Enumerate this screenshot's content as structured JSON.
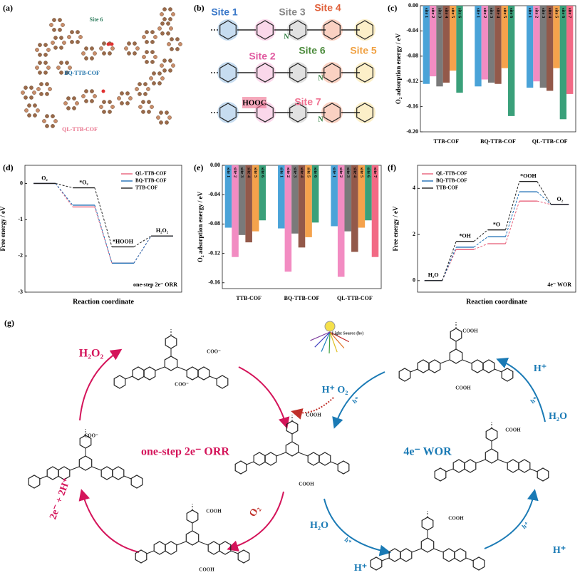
{
  "figure": {
    "panel_labels": [
      "(a)",
      "(b)",
      "(c)",
      "(d)",
      "(e)",
      "(f)",
      "(g)"
    ],
    "a": {
      "site": "Site 6",
      "bq": "BQ-TTB-COF",
      "ql": "QL-TTB-COF"
    },
    "b": {
      "sites": [
        "Site 1",
        "Site 2",
        "Site 3",
        "Site 4",
        "Site 5",
        "Site 6",
        "Site 7"
      ],
      "n": "N",
      "hooc": "HOOC"
    },
    "g": {
      "labels": [
        "H₂O₂",
        "one-step 2e⁻ ORR",
        "2e⁻ + 2H⁺",
        "O₂",
        "H⁺ O₂",
        "h⁺",
        "4e⁻ WOR",
        "H⁺",
        "h⁺",
        "H₂O",
        "H⁺",
        "h⁺",
        "H₂O",
        "h⁺",
        "H⁺",
        "Light Source (hν)",
        "COO⁻",
        "COO⁻",
        "COO⁻",
        "COOH",
        "COOH",
        "COOH",
        "COOH",
        "COOH",
        "COOH",
        "COOH",
        "COOH"
      ]
    }
  },
  "chart_data": [
    {
      "type": "bar",
      "ylabel": "O₂ adsorption energy / eV",
      "categories": [
        "TTB-COF",
        "BQ-TTB-COF",
        "QL-TTB-COF"
      ],
      "series": [
        {
          "name": "site 1",
          "color": "#4aa3d8",
          "values": [
            -0.124,
            -0.128,
            -0.13
          ]
        },
        {
          "name": "site 2",
          "color": "#f28cc2",
          "values": [
            -0.112,
            -0.117,
            -0.12
          ]
        },
        {
          "name": "site 3",
          "color": "#7a7a7a",
          "values": [
            -0.128,
            -0.122,
            -0.13
          ]
        },
        {
          "name": "site 4",
          "color": "#93594a",
          "values": [
            -0.122,
            -0.124,
            -0.135
          ]
        },
        {
          "name": "site 5",
          "color": "#f5a24c",
          "values": [
            -0.103,
            -0.099,
            -0.099
          ]
        },
        {
          "name": "site 6",
          "color": "#3aa07a",
          "values": [
            -0.138,
            -0.175,
            -0.18
          ]
        },
        {
          "name": "site 7",
          "color": "#f26a85",
          "values": [
            null,
            null,
            -0.14
          ]
        }
      ],
      "ylim": [
        -0.2,
        0
      ],
      "yticks": [
        {
          "value": 0,
          "label": "0.00"
        },
        -0.04,
        -0.08,
        -0.12,
        -0.16,
        {
          "value": -0.2,
          "label": "-0.20"
        }
      ]
    },
    {
      "type": "step",
      "ylabel": "Free energy / eV",
      "xlabel": "Reaction coordinate",
      "annotation": "one-step 2e⁻ ORR",
      "categories": [
        "O₂",
        "*O₂",
        "*HOOH",
        "H₂O₂"
      ],
      "series": [
        {
          "name": "QL-TTB-COF",
          "color": "#e8607a",
          "values": [
            0,
            -0.65,
            -2.2,
            -1.45
          ]
        },
        {
          "name": "BQ-TTB-COF",
          "color": "#1f6fb5",
          "values": [
            0,
            -0.6,
            -2.2,
            -1.45
          ]
        },
        {
          "name": "TTB-COF",
          "color": "#222222",
          "values": [
            0,
            -0.12,
            -1.75,
            -1.45
          ]
        }
      ],
      "ylim": [
        -3,
        0.5
      ],
      "yticks": [
        0,
        -1,
        -2,
        -3
      ],
      "legend": "upper right"
    },
    {
      "type": "bar",
      "ylabel": "O₂ adsorption energy / eV",
      "categories": [
        "TTB-COF",
        "BQ-TTB-COF",
        "QL-TTB-COF"
      ],
      "series": [
        {
          "name": "site 1",
          "color": "#4aa3d8",
          "values": [
            -0.085,
            -0.086,
            -0.083
          ]
        },
        {
          "name": "site 2",
          "color": "#f28cc2",
          "values": [
            -0.125,
            -0.145,
            -0.152
          ]
        },
        {
          "name": "site 3",
          "color": "#7a7a7a",
          "values": [
            -0.095,
            -0.093,
            -0.09
          ]
        },
        {
          "name": "site 4",
          "color": "#93594a",
          "values": [
            -0.105,
            -0.112,
            -0.118
          ]
        },
        {
          "name": "site 5",
          "color": "#f5a24c",
          "values": [
            -0.09,
            -0.098,
            -0.085
          ]
        },
        {
          "name": "site 6",
          "color": "#3aa07a",
          "values": [
            -0.075,
            -0.078,
            -0.075
          ]
        },
        {
          "name": "site 7",
          "color": "#f26a85",
          "values": [
            null,
            null,
            -0.125
          ]
        }
      ],
      "ylim": [
        -0.168,
        0
      ],
      "yticks": [
        {
          "value": 0,
          "label": "0.00"
        },
        -0.04,
        -0.08,
        -0.12,
        -0.16
      ]
    },
    {
      "type": "step",
      "ylabel": "Free energy / eV",
      "xlabel": "Reaction coordinate",
      "annotation": "4e⁻ WOR",
      "categories": [
        "H₂O",
        "*OH",
        "*O",
        "*OOH",
        "O₂"
      ],
      "series": [
        {
          "name": "QL-TTB-COF",
          "color": "#e8607a",
          "values": [
            0,
            1.35,
            1.6,
            3.45,
            3.3
          ]
        },
        {
          "name": "BQ-TTB-COF",
          "color": "#1f6fb5",
          "values": [
            0,
            1.45,
            1.9,
            3.85,
            3.3
          ]
        },
        {
          "name": "TTB-COF",
          "color": "#222222",
          "values": [
            0,
            1.7,
            2.2,
            4.3,
            3.3
          ]
        }
      ],
      "ylim": [
        -0.5,
        5
      ],
      "yticks": [
        0,
        2,
        4
      ],
      "legend": "upper left"
    }
  ]
}
